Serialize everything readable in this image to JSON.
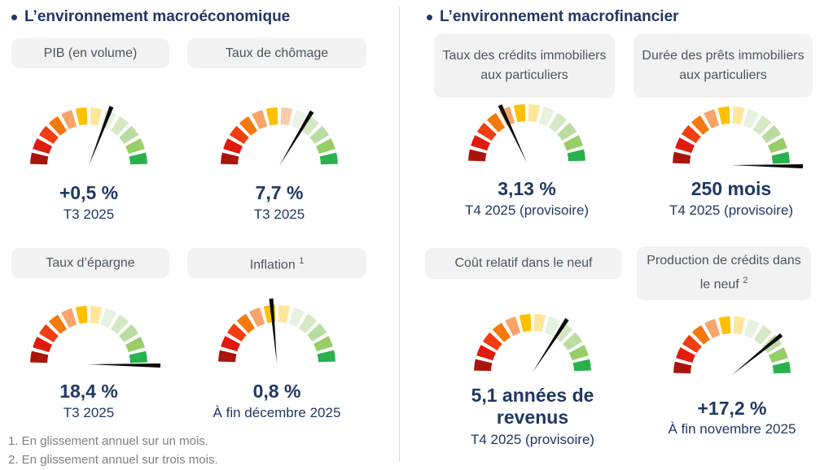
{
  "sections": [
    {
      "title": "L’environnement macroéconomique",
      "indicators": [
        {
          "label": "PIB (en volume)",
          "value": "+0,5 %",
          "period": "T3 2025",
          "gauge": {
            "needle_angle_deg_from_vertical": 21,
            "needle_length": 78
          }
        },
        {
          "label": "Taux de chômage",
          "value": "7,7 %",
          "period": "T3 2025",
          "gauge": {
            "needle_angle_deg_from_vertical": 31,
            "needle_length": 78,
            "segment_colors_override": {
              "6": "#F8CBAD",
              "7": "#EBF4E7"
            }
          }
        },
        {
          "label": "Taux d’épargne",
          "value": "18,4 %",
          "period": "T3 2025",
          "gauge": {
            "needle_angle_deg_from_vertical": 91,
            "needle_length": 88
          }
        },
        {
          "label": "Inflation",
          "label_sup": "1",
          "value": "0,8 %",
          "period": "À fin décembre 2025",
          "gauge": {
            "needle_angle_deg_from_vertical": -5,
            "needle_length": 80
          }
        }
      ]
    },
    {
      "title": "L’environnement macrofinancier",
      "indicators": [
        {
          "label": "Taux des crédits immobiliers aux particuliers",
          "value": "3,13 %",
          "period": "T4 2025 (provisoire)",
          "gauge": {
            "needle_angle_deg_from_vertical": -25,
            "needle_length": 78
          }
        },
        {
          "label": "Durée des prêts immobiliers aux particuliers",
          "value": "250 mois",
          "period": "T4 2025 (provisoire)",
          "gauge": {
            "needle_angle_deg_from_vertical": 91,
            "needle_length": 88
          }
        },
        {
          "label": "Coût relatif dans le neuf",
          "value": "5,1 années de revenus",
          "period": "T4 2025 (provisoire)",
          "gauge": {
            "needle_angle_deg_from_vertical": 33,
            "needle_length": 78
          }
        },
        {
          "label": "Production de crédits dans le neuf",
          "label_sup": "2",
          "value": "+17,2 %",
          "period": "À fin novembre 2025",
          "gauge": {
            "needle_angle_deg_from_vertical": 51,
            "needle_length": 78
          }
        }
      ]
    }
  ],
  "footnotes": [
    "1. En glissement annuel sur un mois.",
    "2. En glissement annuel sur trois mois."
  ],
  "colors": {
    "title_navy": "#1F3864",
    "value_navy": "#1F3864",
    "pill_bg": "#F2F2F2",
    "pill_text": "#4C5560",
    "footnote_gray": "#808080",
    "divider_gray": "#D9D9D9",
    "needle": "#0A0A0A",
    "gauge_palette": [
      "#A9150B",
      "#E01A0D",
      "#F03E10",
      "#F5790D",
      "#F9A468",
      "#FFC000",
      "#FFE699",
      "#E6F1DE",
      "#D4E8C3",
      "#BADCA0",
      "#97CE67",
      "#28B14C"
    ]
  },
  "chart_data": [
    {
      "type": "gauge",
      "title": "PIB (en volume)",
      "value_label": "+0,5 %",
      "period": "T3 2025",
      "scale": "semicircle 12 segments red-to-green",
      "needle_position_pct": 62
    },
    {
      "type": "gauge",
      "title": "Taux de chômage",
      "value_label": "7,7 %",
      "period": "T3 2025",
      "scale": "semicircle 12 segments red-to-green",
      "needle_position_pct": 67
    },
    {
      "type": "gauge",
      "title": "Taux d’épargne",
      "value_label": "18,4 %",
      "period": "T3 2025",
      "scale": "semicircle 12 segments red-to-green",
      "needle_position_pct": 100
    },
    {
      "type": "gauge",
      "title": "Inflation",
      "value_label": "0,8 %",
      "period": "À fin décembre 2025",
      "scale": "semicircle 12 segments red-to-green",
      "needle_position_pct": 47
    },
    {
      "type": "gauge",
      "title": "Taux des crédits immobiliers aux particuliers",
      "value_label": "3,13 %",
      "period": "T4 2025 (provisoire)",
      "scale": "semicircle 12 segments red-to-green",
      "needle_position_pct": 36
    },
    {
      "type": "gauge",
      "title": "Durée des prêts immobiliers aux particuliers",
      "value_label": "250 mois",
      "period": "T4 2025 (provisoire)",
      "scale": "semicircle 12 segments red-to-green",
      "needle_position_pct": 100
    },
    {
      "type": "gauge",
      "title": "Coût relatif dans le neuf",
      "value_label": "5,1 années de revenus",
      "period": "T4 2025 (provisoire)",
      "scale": "semicircle 12 segments red-to-green",
      "needle_position_pct": 68
    },
    {
      "type": "gauge",
      "title": "Production de crédits dans le neuf",
      "value_label": "+17,2 %",
      "period": "À fin novembre 2025",
      "scale": "semicircle 12 segments red-to-green",
      "needle_position_pct": 78
    }
  ]
}
